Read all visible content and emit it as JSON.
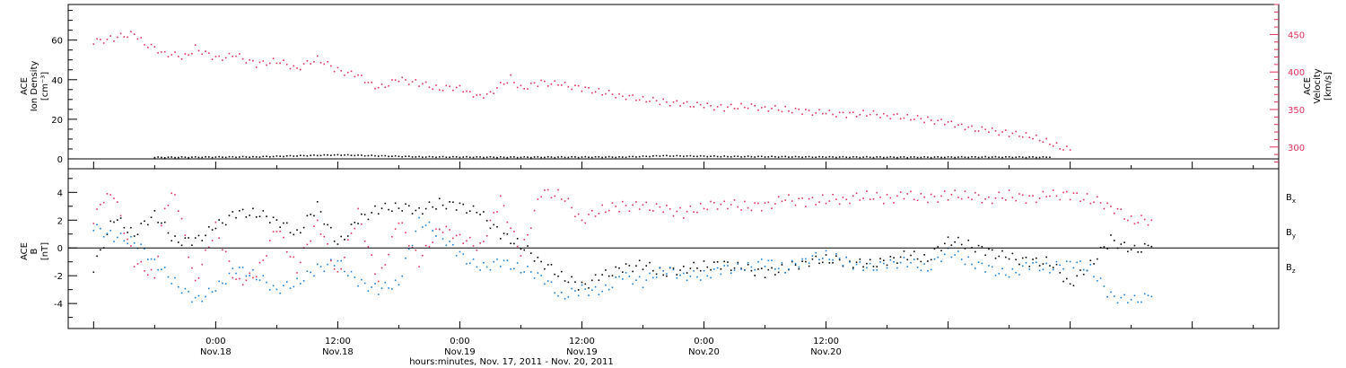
{
  "chart_data": [
    {
      "type": "scatter",
      "panel": "top",
      "ylabel": [
        "ACE",
        "Ion Density",
        "[cm⁻³]"
      ],
      "ylim": [
        -5,
        78
      ],
      "yticks": [
        0,
        20,
        40,
        60
      ],
      "y2label": [
        "ACE",
        "Velocity",
        "[km/s]"
      ],
      "y2lim": [
        271,
        490
      ],
      "y2ticks": [
        300,
        350,
        400,
        450
      ],
      "colors": {
        "density": "#000000",
        "velocity": "#e0305a"
      },
      "series": [
        {
          "axis": "left",
          "color": "#000000",
          "points": [
            [
              -6,
              0.7
            ],
            [
              4,
              1.0
            ],
            [
              12,
              2.0
            ],
            [
              20,
              1.0
            ],
            [
              28,
              0.8
            ],
            [
              40,
              0.9
            ],
            [
              44,
              1.5
            ],
            [
              50,
              1.2
            ],
            [
              60,
              0.9
            ],
            [
              68,
              0.8
            ],
            [
              76,
              0.9
            ],
            [
              82,
              0.8
            ]
          ]
        },
        {
          "axis": "right",
          "color": "#e0305a",
          "points": [
            [
              -12,
              440
            ],
            [
              -10,
              445
            ],
            [
              -8,
              452
            ],
            [
              -7,
              438
            ],
            [
              -5,
              425
            ],
            [
              -3,
              420
            ],
            [
              -2,
              432
            ],
            [
              0,
              418
            ],
            [
              2,
              422
            ],
            [
              4,
              410
            ],
            [
              6,
              415
            ],
            [
              8,
              405
            ],
            [
              10,
              418
            ],
            [
              12,
              402
            ],
            [
              14,
              395
            ],
            [
              15,
              385
            ],
            [
              16,
              378
            ],
            [
              18,
              390
            ],
            [
              20,
              385
            ],
            [
              22,
              378
            ],
            [
              24,
              380
            ],
            [
              25,
              372
            ],
            [
              26,
              368
            ],
            [
              27,
              372
            ],
            [
              29,
              392
            ],
            [
              30,
              378
            ],
            [
              32,
              386
            ],
            [
              34,
              383
            ],
            [
              36,
              378
            ],
            [
              38,
              373
            ],
            [
              40,
              368
            ],
            [
              42,
              364
            ],
            [
              44,
              360
            ],
            [
              46,
              357
            ],
            [
              48,
              355
            ],
            [
              50,
              352
            ],
            [
              52,
              355
            ],
            [
              54,
              352
            ],
            [
              56,
              350
            ],
            [
              58,
              347
            ],
            [
              60,
              345
            ],
            [
              62,
              343
            ],
            [
              64,
              345
            ],
            [
              66,
              342
            ],
            [
              68,
              340
            ],
            [
              70,
              336
            ],
            [
              72,
              332
            ],
            [
              73,
              328
            ],
            [
              74,
              325
            ],
            [
              76,
              322
            ],
            [
              78,
              318
            ],
            [
              80,
              315
            ],
            [
              81,
              311
            ],
            [
              82,
              306
            ],
            [
              83,
              300
            ],
            [
              84,
              296
            ]
          ]
        }
      ]
    },
    {
      "type": "scatter",
      "panel": "bottom",
      "ylabel": [
        "ACE",
        "B",
        "[nT]"
      ],
      "ylim": [
        -5.8,
        5.7
      ],
      "yticks": [
        -4,
        -2,
        0,
        2,
        4
      ],
      "legend": [
        "Bx",
        "By",
        "Bz"
      ],
      "legend_position": "right",
      "series": [
        {
          "name": "Bx",
          "color": "#000000",
          "points": [
            [
              -12,
              -1.5
            ],
            [
              -10,
              2.2
            ],
            [
              -8,
              1.0
            ],
            [
              -6,
              2.5
            ],
            [
              -4,
              0.5
            ],
            [
              -2,
              0.5
            ],
            [
              0,
              1.5
            ],
            [
              2,
              2.5
            ],
            [
              4,
              2.5
            ],
            [
              6,
              2.0
            ],
            [
              8,
              1.0
            ],
            [
              10,
              3.0
            ],
            [
              12,
              0.2
            ],
            [
              14,
              2.0
            ],
            [
              16,
              2.8
            ],
            [
              18,
              3.0
            ],
            [
              20,
              2.7
            ],
            [
              22,
              3.2
            ],
            [
              24,
              3.0
            ],
            [
              26,
              2.5
            ],
            [
              28,
              1.0
            ],
            [
              30,
              0.2
            ],
            [
              32,
              -1.0
            ],
            [
              34,
              -2.0
            ],
            [
              36,
              -2.8
            ],
            [
              38,
              -2.0
            ],
            [
              40,
              -1.5
            ],
            [
              42,
              -1.2
            ],
            [
              44,
              -1.8
            ],
            [
              46,
              -1.5
            ],
            [
              48,
              -1.3
            ],
            [
              50,
              -1.2
            ],
            [
              52,
              -1.5
            ],
            [
              54,
              -1.8
            ],
            [
              56,
              -1.5
            ],
            [
              58,
              -1.0
            ],
            [
              60,
              -0.8
            ],
            [
              62,
              -1.0
            ],
            [
              64,
              -1.2
            ],
            [
              66,
              -1.0
            ],
            [
              68,
              -0.5
            ],
            [
              70,
              -0.8
            ],
            [
              72,
              0.6
            ],
            [
              74,
              0.2
            ],
            [
              76,
              -0.3
            ],
            [
              78,
              -0.7
            ],
            [
              80,
              -1.0
            ],
            [
              82,
              -1.0
            ],
            [
              84,
              -2.6
            ],
            [
              86,
              -1.2
            ],
            [
              88,
              0.6
            ],
            [
              90,
              -0.2
            ],
            [
              92,
              0.1
            ]
          ]
        },
        {
          "name": "By",
          "color": "#1a7fd6",
          "points": [
            [
              -12,
              1.5
            ],
            [
              -10,
              0.8
            ],
            [
              -8,
              0.5
            ],
            [
              -6,
              -1.0
            ],
            [
              -4,
              -2.5
            ],
            [
              -2,
              -3.8
            ],
            [
              0,
              -3.0
            ],
            [
              2,
              -1.5
            ],
            [
              4,
              -2.0
            ],
            [
              6,
              -3.0
            ],
            [
              8,
              -2.5
            ],
            [
              10,
              -1.5
            ],
            [
              12,
              -1.0
            ],
            [
              14,
              -2.5
            ],
            [
              16,
              -3.0
            ],
            [
              18,
              -2.5
            ],
            [
              20,
              2.0
            ],
            [
              22,
              1.0
            ],
            [
              24,
              -0.5
            ],
            [
              26,
              -1.5
            ],
            [
              28,
              -1.0
            ],
            [
              30,
              -1.5
            ],
            [
              32,
              -2.0
            ],
            [
              34,
              -3.5
            ],
            [
              36,
              -3.0
            ],
            [
              38,
              -3.2
            ],
            [
              40,
              -2.0
            ],
            [
              42,
              -2.5
            ],
            [
              44,
              -1.5
            ],
            [
              46,
              -2.0
            ],
            [
              48,
              -2.0
            ],
            [
              50,
              -1.5
            ],
            [
              52,
              -1.5
            ],
            [
              54,
              -1.0
            ],
            [
              56,
              -1.5
            ],
            [
              58,
              -0.8
            ],
            [
              60,
              -0.5
            ],
            [
              62,
              -1.0
            ],
            [
              64,
              -1.5
            ],
            [
              66,
              -1.2
            ],
            [
              68,
              -1.0
            ],
            [
              70,
              -1.5
            ],
            [
              72,
              -0.2
            ],
            [
              74,
              -1.0
            ],
            [
              76,
              -1.5
            ],
            [
              78,
              -2.0
            ],
            [
              80,
              -1.2
            ],
            [
              82,
              -1.5
            ],
            [
              84,
              -1.0
            ],
            [
              86,
              -1.5
            ],
            [
              88,
              -3.5
            ],
            [
              90,
              -3.8
            ],
            [
              92,
              -3.5
            ]
          ]
        },
        {
          "name": "Bz",
          "color": "#e0305a",
          "points": [
            [
              -12,
              2.0
            ],
            [
              -11,
              3.5
            ],
            [
              -10,
              3.8
            ],
            [
              -8,
              -1.0
            ],
            [
              -6,
              -2.0
            ],
            [
              -5,
              3.0
            ],
            [
              -4,
              4.0
            ],
            [
              -2,
              -2.5
            ],
            [
              0,
              1.5
            ],
            [
              2,
              -2.5
            ],
            [
              4,
              -2.0
            ],
            [
              6,
              1.5
            ],
            [
              8,
              -1.5
            ],
            [
              10,
              2.0
            ],
            [
              12,
              -2.0
            ],
            [
              14,
              2.5
            ],
            [
              16,
              -2.5
            ],
            [
              18,
              2.0
            ],
            [
              20,
              -1.0
            ],
            [
              22,
              1.5
            ],
            [
              24,
              0.8
            ],
            [
              26,
              0.0
            ],
            [
              28,
              3.5
            ],
            [
              30,
              -0.5
            ],
            [
              32,
              4.0
            ],
            [
              34,
              3.8
            ],
            [
              36,
              2.0
            ],
            [
              38,
              2.8
            ],
            [
              40,
              3.0
            ],
            [
              42,
              3.0
            ],
            [
              44,
              2.8
            ],
            [
              46,
              2.5
            ],
            [
              48,
              3.0
            ],
            [
              50,
              3.2
            ],
            [
              52,
              3.0
            ],
            [
              54,
              3.0
            ],
            [
              56,
              3.5
            ],
            [
              58,
              3.3
            ],
            [
              60,
              3.5
            ],
            [
              62,
              3.5
            ],
            [
              64,
              3.8
            ],
            [
              66,
              3.5
            ],
            [
              68,
              3.8
            ],
            [
              70,
              3.5
            ],
            [
              72,
              3.8
            ],
            [
              74,
              3.8
            ],
            [
              76,
              3.5
            ],
            [
              78,
              3.8
            ],
            [
              80,
              3.5
            ],
            [
              82,
              3.8
            ],
            [
              84,
              3.8
            ],
            [
              86,
              3.5
            ],
            [
              88,
              3.0
            ],
            [
              90,
              2.0
            ],
            [
              92,
              2.0
            ]
          ]
        }
      ]
    }
  ],
  "x_axis": {
    "range_hours": [
      -14.5,
      104.5
    ],
    "ticks": [
      {
        "h": 0,
        "time": "0:00",
        "date": "Nov.18"
      },
      {
        "h": 12,
        "time": "12:00",
        "date": "Nov.18"
      },
      {
        "h": 24,
        "time": "0:00",
        "date": "Nov.19"
      },
      {
        "h": 36,
        "time": "12:00",
        "date": "Nov.19"
      },
      {
        "h": 48,
        "time": "0:00",
        "date": "Nov.20"
      },
      {
        "h": 60,
        "time": "12:00",
        "date": "Nov.20"
      }
    ],
    "xlabel": "hours:minutes, Nov. 17, 2011 - Nov. 20, 2011"
  }
}
